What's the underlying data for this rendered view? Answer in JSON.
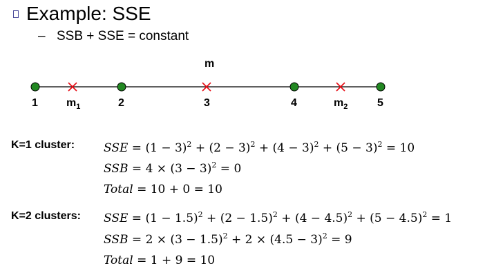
{
  "slide": {
    "title": "Example: SSE",
    "subtitle_dash": "–",
    "subtitle": "SSB + SSE = constant"
  },
  "number_line": {
    "centroid_label": "m",
    "points": [
      "1",
      "2",
      "3",
      "4",
      "5"
    ],
    "m1": {
      "base": "m",
      "sub": "1"
    },
    "m2": {
      "base": "m",
      "sub": "2"
    },
    "colors": {
      "point": "#228822",
      "centroid_mark": "#e8121a",
      "line": "#000000"
    }
  },
  "k1": {
    "label": "K=1 cluster:",
    "sse": {
      "name": "SSE",
      "terms": [
        "(1 − 3)",
        "(2 − 3)",
        "(4 − 3)",
        "(5 − 3)"
      ],
      "exponent": "2",
      "result": "10"
    },
    "ssb": {
      "name": "SSB",
      "lhs": "4 × (3 − 3)",
      "exponent": "2",
      "result": "0"
    },
    "total": {
      "name": "Total",
      "expr": "10 + 0 = 10"
    }
  },
  "k2": {
    "label": "K=2 clusters:",
    "sse": {
      "name": "SSE",
      "terms": [
        "(1 − 1.5)",
        "(2 − 1.5)",
        "(4 − 4.5)",
        "(5 − 4.5)"
      ],
      "exponent": "2",
      "result": "1"
    },
    "ssb": {
      "name": "SSB",
      "term1": "2 × (3 − 1.5)",
      "term2": "2 × (4.5 − 3)",
      "exponent": "2",
      "result": "9"
    },
    "total": {
      "name": "Total",
      "expr": "1 + 9 = 10"
    }
  }
}
